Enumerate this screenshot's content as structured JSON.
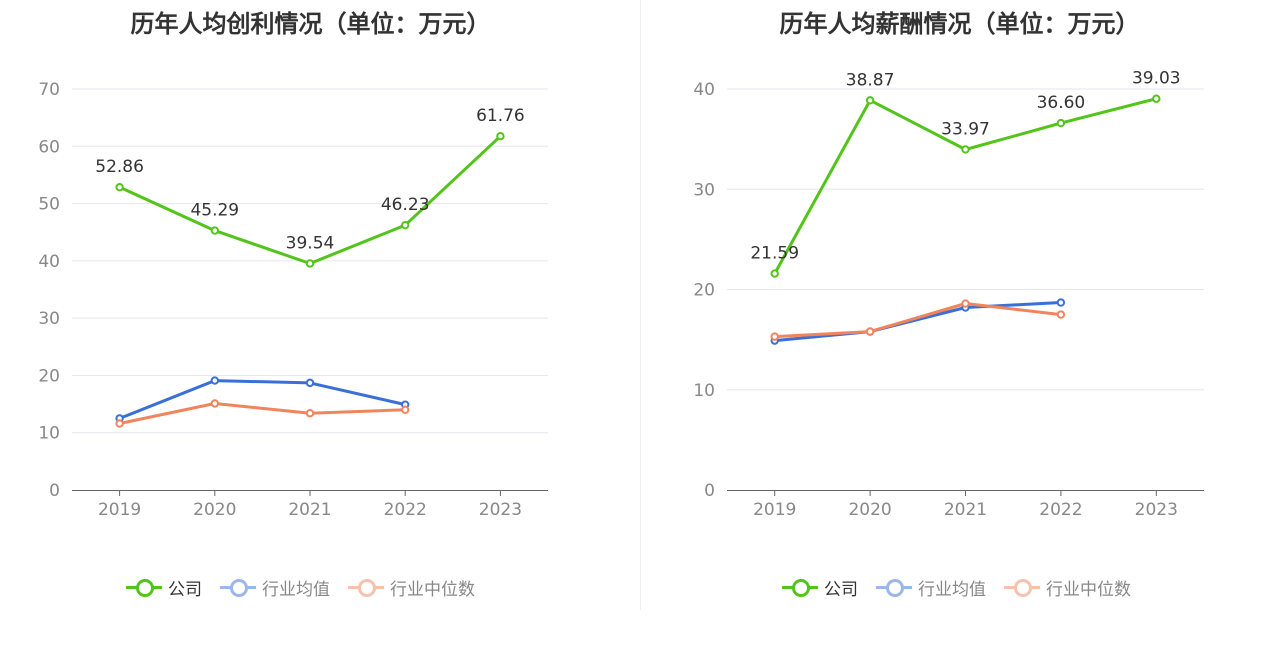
{
  "chart_data": [
    {
      "type": "line",
      "title": "历年人均创利情况（单位：万元）",
      "categories": [
        "2019",
        "2020",
        "2021",
        "2022",
        "2023"
      ],
      "ylim": [
        0,
        70
      ],
      "yticks": [
        0,
        10,
        20,
        30,
        40,
        50,
        60,
        70
      ],
      "grid": true,
      "legend_position": "bottom",
      "series": [
        {
          "name": "公司",
          "color": "#52c41a",
          "values": [
            52.86,
            45.29,
            39.54,
            46.23,
            61.76
          ],
          "labels": [
            "52.86",
            "45.29",
            "39.54",
            "46.23",
            "61.76"
          ]
        },
        {
          "name": "行业均值",
          "color": "#3a6fd8",
          "values": [
            12.5,
            19.1,
            18.7,
            14.9,
            null
          ]
        },
        {
          "name": "行业中位数",
          "color": "#f0845c",
          "values": [
            11.6,
            15.1,
            13.4,
            14.0,
            null
          ]
        }
      ]
    },
    {
      "type": "line",
      "title": "历年人均薪酬情况（单位：万元）",
      "categories": [
        "2019",
        "2020",
        "2021",
        "2022",
        "2023"
      ],
      "ylim": [
        0,
        40
      ],
      "yticks": [
        0,
        10,
        20,
        30,
        40
      ],
      "grid": true,
      "legend_position": "bottom",
      "series": [
        {
          "name": "公司",
          "color": "#52c41a",
          "values": [
            21.59,
            38.87,
            33.97,
            36.6,
            39.03
          ],
          "labels": [
            "21.59",
            "38.87",
            "33.97",
            "36.60",
            "39.03"
          ]
        },
        {
          "name": "行业均值",
          "color": "#3a6fd8",
          "values": [
            14.9,
            15.8,
            18.2,
            18.7,
            null
          ]
        },
        {
          "name": "行业中位数",
          "color": "#f0845c",
          "values": [
            15.3,
            15.8,
            18.6,
            17.5,
            null
          ]
        }
      ]
    }
  ],
  "legend_style": {
    "company_color": "#52c41a",
    "avg_color": "#9ab8ea",
    "median_color": "#f6b9a0"
  }
}
